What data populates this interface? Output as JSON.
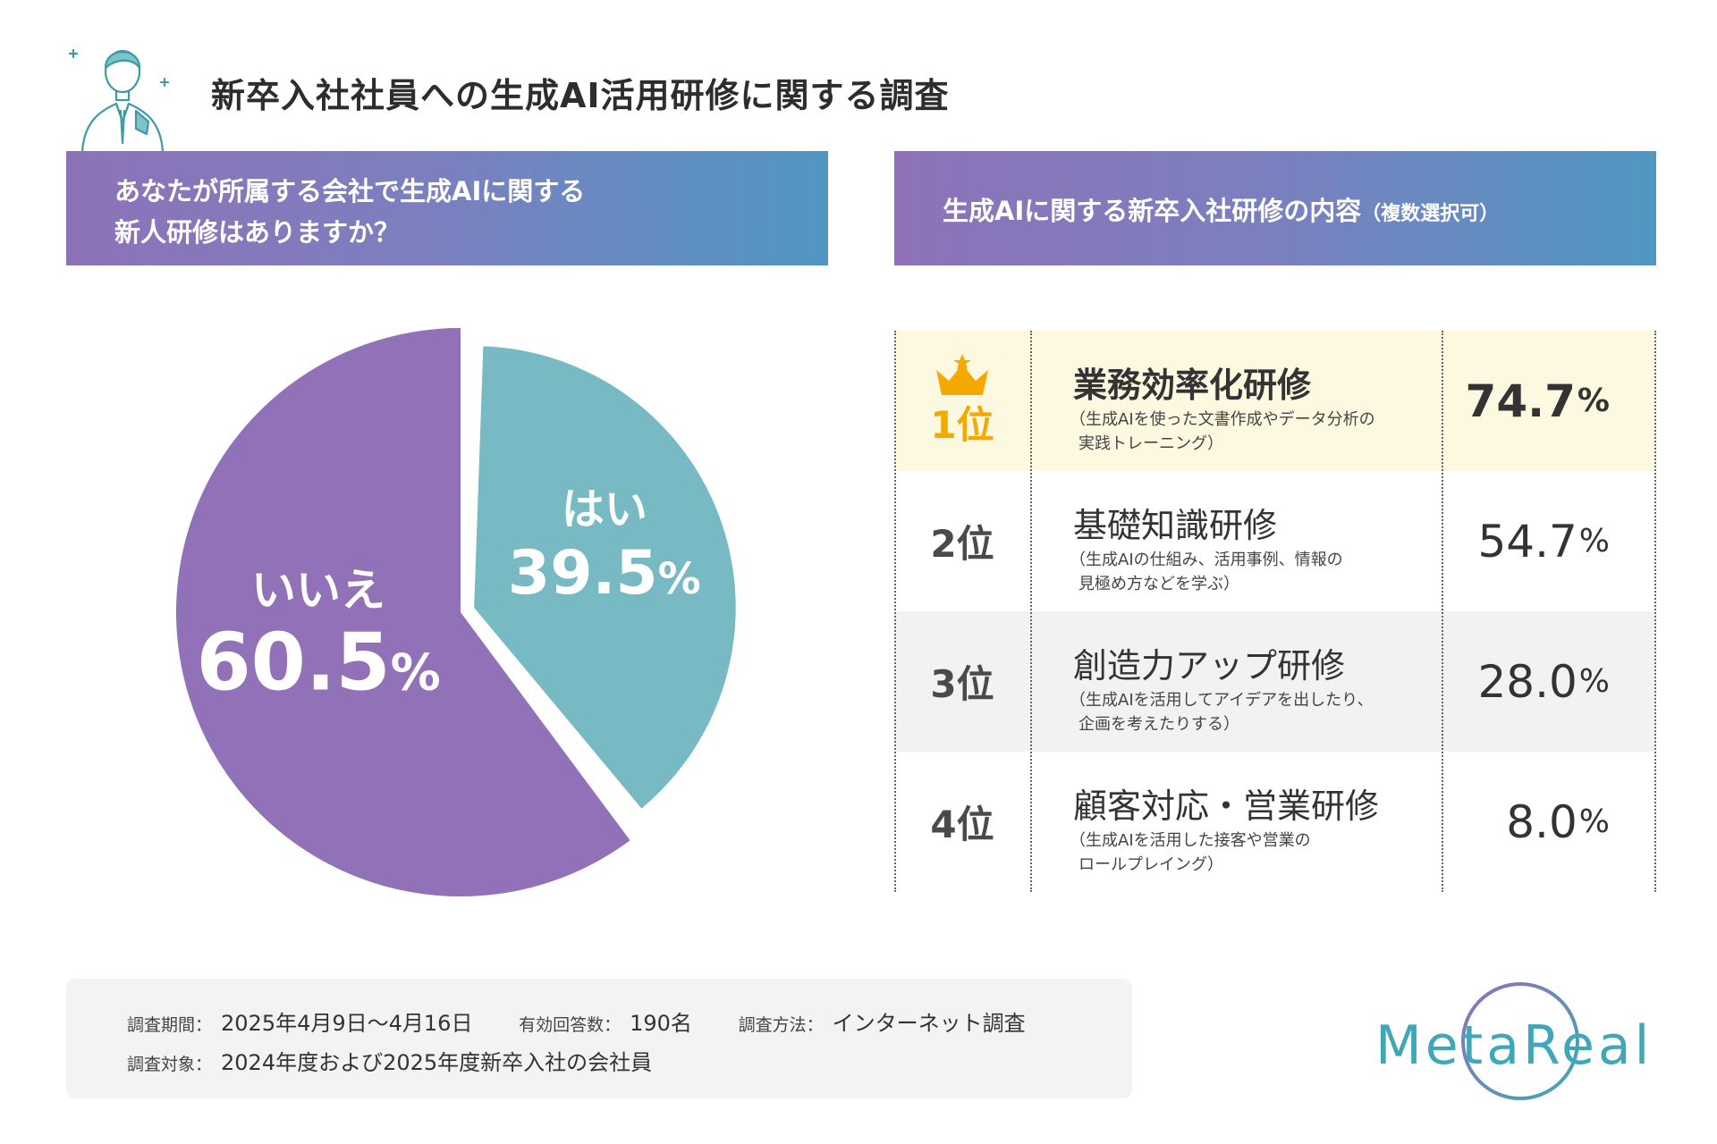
{
  "title": "新卒入社社員への生成AI活用研修に関する調査",
  "colors": {
    "purple": "#9171b8",
    "teal": "#77bac4",
    "gold": "#f4a800",
    "highlight": "#fdf9e1",
    "gray_row": "#f2f2f2"
  },
  "left_panel": {
    "question_line1": "あなたが所属する会社で生成AIに関する",
    "question_line2": "新人研修はありますか？"
  },
  "right_panel": {
    "question": "生成AIに関する新卒入社研修の内容",
    "note": "（複数選択可）"
  },
  "chart_data": [
    {
      "type": "pie",
      "unit": "%",
      "slices": [
        {
          "label": "はい",
          "value": 39.5,
          "color": "#77bac4"
        },
        {
          "label": "いいえ",
          "value": 60.5,
          "color": "#9171b8"
        }
      ]
    },
    {
      "type": "table",
      "unit": "%",
      "rows": [
        {
          "rank": "1位",
          "name": "業務効率化研修",
          "desc1": "（生成AIを使った文書作成やデータ分析の",
          "desc2": "実践トレーニング）",
          "value": 74.7,
          "value_text": "74.7"
        },
        {
          "rank": "2位",
          "name": "基礎知識研修",
          "desc1": "（生成AIの仕組み、活用事例、情報の",
          "desc2": "見極め方などを学ぶ）",
          "value": 54.7,
          "value_text": "54.7"
        },
        {
          "rank": "3位",
          "name": "創造力アップ研修",
          "desc1": "（生成AIを活用してアイデアを出したり、",
          "desc2": "企画を考えたりする）",
          "value": 28.0,
          "value_text": "28.0"
        },
        {
          "rank": "4位",
          "name": "顧客対応・営業研修",
          "desc1": "（生成AIを活用した接客や営業の",
          "desc2": "ロールプレイング）",
          "value": 8.0,
          "value_text": "8.0"
        }
      ]
    }
  ],
  "survey": {
    "period_label": "調査期間：",
    "period": "2025年4月9日〜4月16日",
    "responses_label": "有効回答数：",
    "responses": "190名",
    "method_label": "調査方法：",
    "method": "インターネット調査",
    "target_label": "調査対象：",
    "target": "2024年度および2025年度新卒入社の会社員"
  },
  "logo": {
    "text": "MetaReal"
  },
  "icons": {
    "mascot": "businessman-icon",
    "rank1": "crown-icon"
  }
}
